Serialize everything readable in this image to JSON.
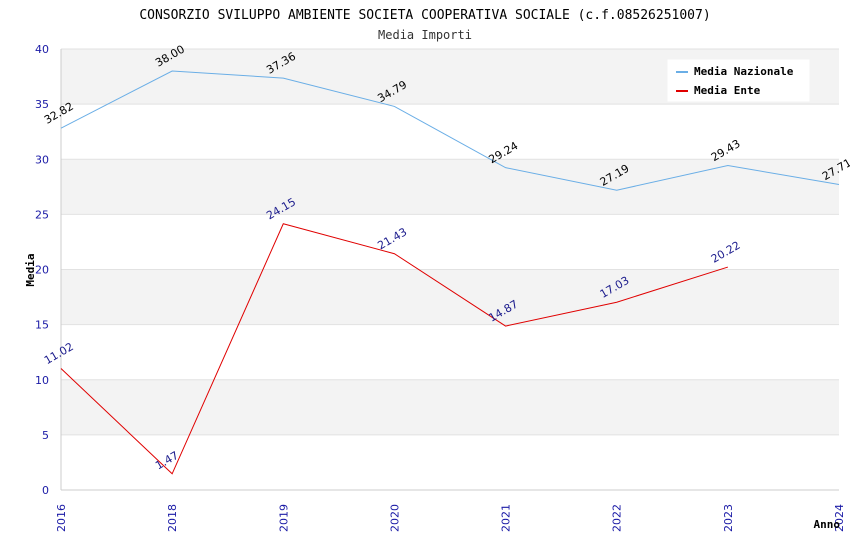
{
  "chart_data": {
    "type": "line",
    "title": "CONSORZIO SVILUPPO AMBIENTE SOCIETA COOPERATIVA SOCIALE (c.f.08526251007)",
    "subtitle": "Media Importi",
    "xlabel": "Anno",
    "ylabel": "Media",
    "categories": [
      "2016",
      "2018",
      "2019",
      "2020",
      "2021",
      "2022",
      "2023",
      "2024"
    ],
    "ylim": [
      0,
      40
    ],
    "yticks": [
      0,
      5,
      10,
      15,
      20,
      25,
      30,
      35,
      40
    ],
    "grid": true,
    "legend_position": "top-right",
    "series": [
      {
        "name": "Media Nazionale",
        "color": "#6aaee6",
        "label_color": "#000000",
        "values": [
          32.82,
          38.0,
          37.36,
          34.79,
          29.24,
          27.19,
          29.43,
          27.71
        ],
        "labels": [
          "32.82",
          "38.00",
          "37.36",
          "34.79",
          "29.24",
          "27.19",
          "29.43",
          "27.71"
        ]
      },
      {
        "name": "Media Ente",
        "color": "#e00000",
        "label_color": "#1a1a8c",
        "values": [
          11.02,
          1.47,
          24.15,
          21.43,
          14.87,
          17.03,
          20.22,
          null
        ],
        "labels": [
          "11.02",
          "1.47",
          "24.15",
          "21.43",
          "14.87",
          "17.03",
          "20.22",
          null
        ]
      }
    ]
  }
}
